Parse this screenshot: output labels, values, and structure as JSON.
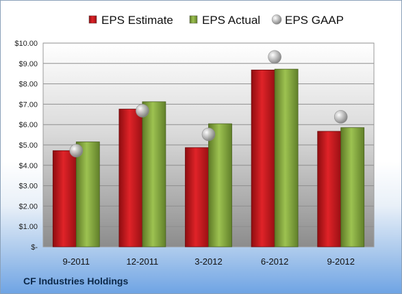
{
  "company_name": "CF Industries Holdings",
  "chart_data": {
    "type": "bar",
    "categories": [
      "9-2011",
      "12-2011",
      "3-2012",
      "6-2012",
      "9-2012"
    ],
    "series": [
      {
        "name": "EPS Estimate",
        "kind": "bar",
        "color": "#c0151a",
        "values": [
          4.72,
          6.76,
          4.87,
          8.68,
          5.67
        ]
      },
      {
        "name": "EPS Actual",
        "kind": "bar",
        "color": "#7fa03a",
        "values": [
          5.15,
          7.12,
          6.04,
          8.72,
          5.85
        ]
      },
      {
        "name": "EPS GAAP",
        "kind": "marker",
        "color": "#a8a8a8",
        "values": [
          4.72,
          6.68,
          5.52,
          9.32,
          6.38
        ]
      }
    ],
    "yticks": [
      "$-",
      "$1.00",
      "$2.00",
      "$3.00",
      "$4.00",
      "$5.00",
      "$6.00",
      "$7.00",
      "$8.00",
      "$9.00",
      "$10.00"
    ],
    "ylim": [
      0,
      10
    ],
    "grid": true,
    "legend": "top"
  }
}
